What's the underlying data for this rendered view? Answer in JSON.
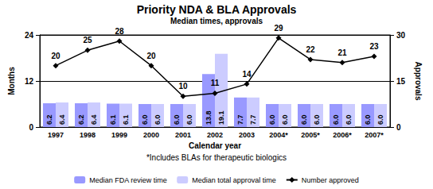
{
  "chart_data": {
    "type": "bar",
    "title": "Priority NDA & BLA Approvals",
    "subtitle": "Median times, approvals",
    "x_label": "Calendar year",
    "y_label": "Months",
    "y2_label": "Approvals",
    "annotations": [
      "*Includes BLAs for therapeutic biologics"
    ],
    "categories": [
      "1997",
      "1998",
      "1999",
      "2000",
      "2001",
      "2002",
      "2003",
      "2004*",
      "2005*",
      "2006*",
      "2007*"
    ],
    "series": [
      {
        "name": "Median FDA review time",
        "type": "bar",
        "color": "#9999ff",
        "values": [
          6.2,
          6.2,
          6.1,
          6.0,
          6.0,
          13.8,
          7.7,
          6.0,
          6.0,
          6.0,
          6.0
        ],
        "value_labels": [
          "6.2",
          "6.2",
          "6.1",
          "6.0",
          "6.0",
          "13.8",
          "7.7",
          "6.0",
          "6.0",
          "6.0",
          "6.0"
        ]
      },
      {
        "name": "Median total approval time",
        "type": "bar",
        "color": "#ccccff",
        "values": [
          6.4,
          6.4,
          6.1,
          6.0,
          6.0,
          19.1,
          7.7,
          6.0,
          6.0,
          6.0,
          6.0
        ],
        "value_labels": [
          "6.4",
          "6.4",
          "6.1",
          "6.0",
          "6.0",
          "19.1",
          "7.7",
          "6.0",
          "6.0",
          "6.0",
          "6.0"
        ]
      },
      {
        "name": "Number approved",
        "type": "line",
        "color": "#000000",
        "marker": "diamond",
        "axis": "y2",
        "values": [
          20,
          25,
          28,
          20,
          10,
          11,
          14,
          29,
          22,
          21,
          23
        ]
      }
    ],
    "ylim": [
      0,
      24
    ],
    "yticks": [
      0,
      12,
      24
    ],
    "y2lim": [
      0,
      30
    ],
    "y2ticks": [
      0,
      15,
      30
    ],
    "grid": true,
    "data_labels": true,
    "legend": "bottom"
  }
}
